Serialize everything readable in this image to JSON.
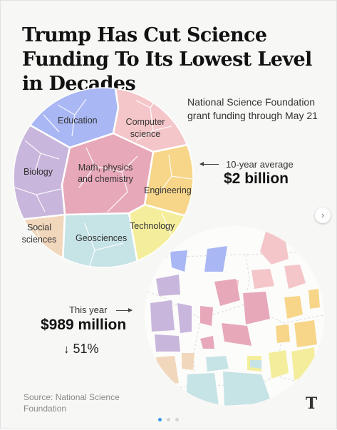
{
  "title": "Trump Has Cut Science Funding To Its Lowest Level in Decades",
  "subtitle": "National Science Foundation grant funding through May 21",
  "average": {
    "label": "10-year average",
    "value": "$2 billion"
  },
  "this_year": {
    "label": "This year",
    "value": "$989 million",
    "change": "51%",
    "change_arrow": "↓"
  },
  "source": "Source: National Science Foundation",
  "logo": "T",
  "next_icon": "›",
  "colors": {
    "education": "#a9b7f4",
    "computer_science": "#f4c6c9",
    "math": "#e7a8b9",
    "biology": "#c9b6dc",
    "engineering": "#f7d68a",
    "technology": "#f4ee9c",
    "social_sciences": "#f1d7bc",
    "geosciences": "#c6e3e6"
  },
  "chart_data": [
    {
      "type": "voronoi_treemap",
      "series": "10-year average",
      "total": "$2 billion",
      "regions": [
        {
          "label": "Education"
        },
        {
          "label": "Computer science"
        },
        {
          "label": "Math, physics and chemistry"
        },
        {
          "label": "Biology"
        },
        {
          "label": "Engineering"
        },
        {
          "label": "Technology"
        },
        {
          "label": "Social sciences"
        },
        {
          "label": "Geosciences"
        }
      ]
    },
    {
      "type": "voronoi_treemap",
      "series": "This year",
      "total": "$989 million",
      "change": "51%"
    }
  ]
}
